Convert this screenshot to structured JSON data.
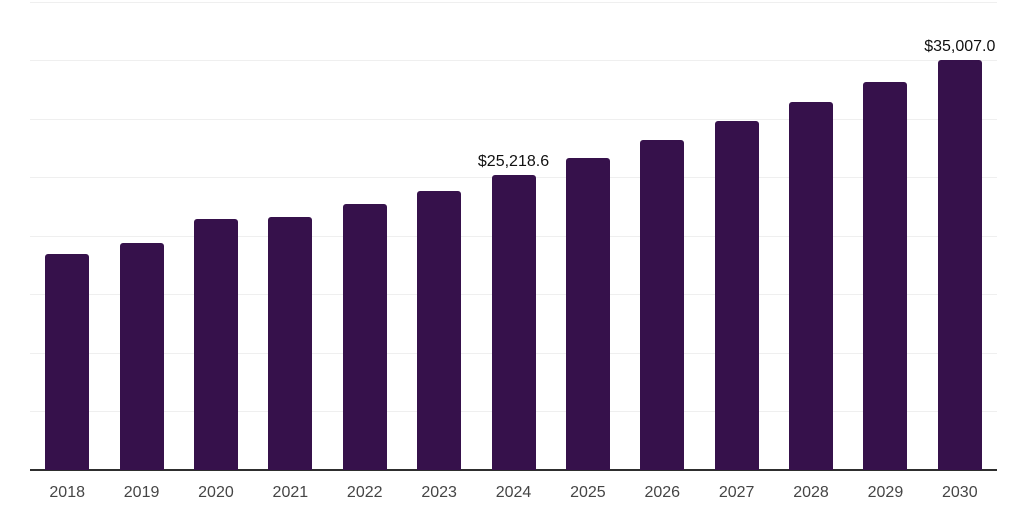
{
  "chart_data": {
    "type": "bar",
    "title": "",
    "xlabel": "",
    "ylabel": "",
    "legend": "none",
    "categories": [
      "2018",
      "2019",
      "2020",
      "2021",
      "2022",
      "2023",
      "2024",
      "2025",
      "2026",
      "2027",
      "2028",
      "2029",
      "2030"
    ],
    "values": [
      18450,
      19400,
      21420,
      21600,
      22700,
      23830,
      25218.6,
      26660,
      28170,
      29810,
      31430,
      33160,
      35007.0
    ],
    "data_labels": [
      "",
      "",
      "",
      "",
      "",
      "",
      "$25,218.6",
      "",
      "",
      "",
      "",
      "",
      "$35,007.0"
    ],
    "ylim": [
      0,
      40000
    ],
    "grid_step": 5000,
    "grid": true,
    "y_tick_labels_visible": false,
    "colors": {
      "bar": "#36114B",
      "gridline": "#EFEFEF",
      "axis": "#2E2E2E",
      "tick_label": "#454545",
      "value_label": "#111111",
      "background": "#FFFFFF"
    }
  }
}
